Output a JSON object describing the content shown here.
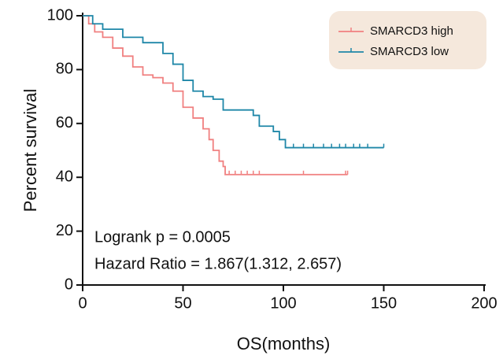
{
  "chart_data": {
    "type": "step",
    "xlabel": "OS(months)",
    "ylabel": "Percent survival",
    "xlim": [
      0,
      200
    ],
    "xticks": [
      0,
      50,
      100,
      150,
      200
    ],
    "ylim": [
      0,
      100
    ],
    "yticks": [
      0,
      20,
      40,
      60,
      80,
      100
    ],
    "legend": "upper right",
    "annotations": [
      "Logrank p = 0.0005",
      "Hazard Ratio = 1.867(1.312, 2.657)"
    ],
    "series": [
      {
        "name": "SMARCD3 high",
        "color": "#f08080",
        "x": [
          0,
          3,
          6,
          10,
          15,
          20,
          25,
          30,
          35,
          40,
          45,
          50,
          55,
          60,
          63,
          65,
          68,
          70,
          71,
          132
        ],
        "values": [
          100,
          97,
          94,
          92,
          88,
          85,
          81,
          78,
          77,
          75,
          72,
          66,
          62,
          58,
          54,
          50,
          46,
          44,
          41,
          41
        ],
        "censored": [
          73,
          76,
          79,
          82,
          85,
          88,
          110,
          131,
          132
        ]
      },
      {
        "name": "SMARCD3 low",
        "color": "#1f87a8",
        "x": [
          0,
          5,
          10,
          20,
          30,
          40,
          45,
          50,
          55,
          60,
          65,
          70,
          85,
          88,
          95,
          98,
          101,
          150
        ],
        "values": [
          100,
          97,
          95,
          92,
          90,
          86,
          82,
          76,
          72,
          70,
          69,
          65,
          63,
          59,
          57,
          54,
          51,
          51
        ],
        "censored": [
          105,
          110,
          115,
          120,
          124,
          128,
          131,
          135,
          138,
          142,
          150
        ]
      }
    ]
  }
}
